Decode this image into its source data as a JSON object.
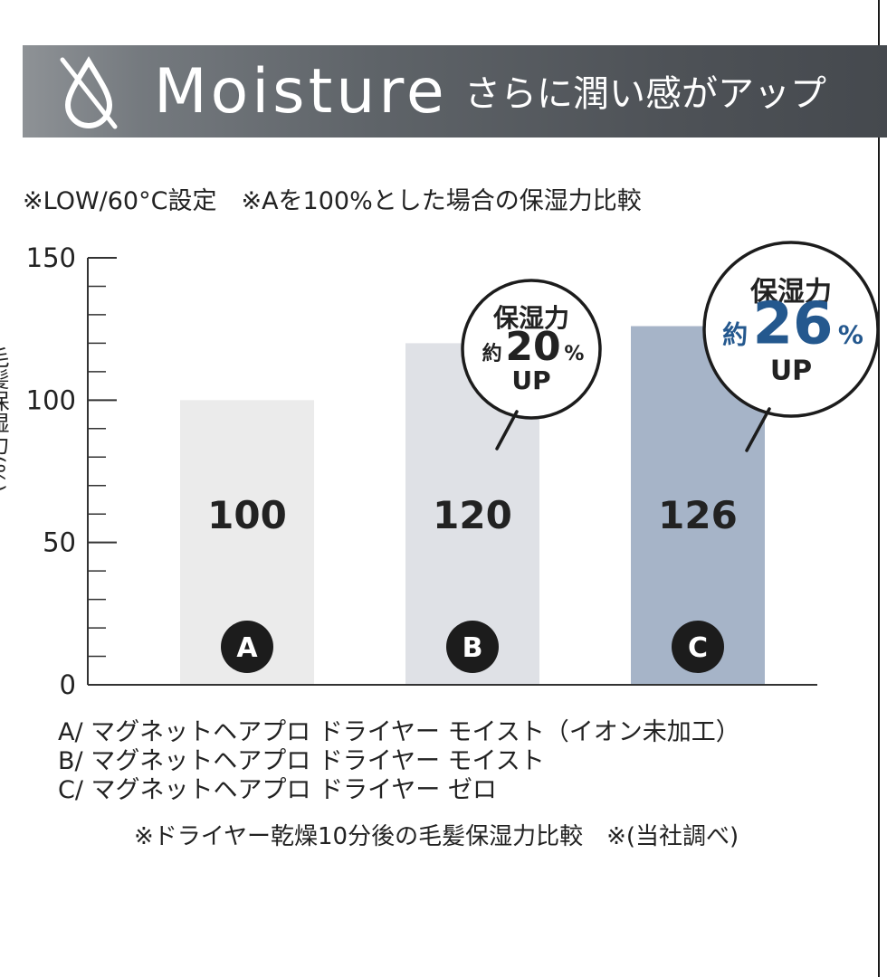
{
  "header": {
    "title": "Moisture",
    "subtitle": "さらに潤い感がアップ",
    "icon": "droplet-slash-icon",
    "bg_color": "#5f6469"
  },
  "note": "※LOW/60°C設定　※Aを100%とした場合の保湿力比較",
  "chart_data": {
    "type": "bar",
    "categories": [
      "A",
      "B",
      "C"
    ],
    "values": [
      100,
      120,
      126
    ],
    "value_labels": [
      "100",
      "120",
      "126"
    ],
    "ylabel": "毛髪保湿力(%)",
    "ylim": [
      0,
      150
    ],
    "yticks": [
      0,
      50,
      100,
      150
    ],
    "minor_tick_step": 10,
    "colors": [
      "#ebebeb",
      "#dfe1e6",
      "#a6b4c8"
    ],
    "grid": false,
    "callouts": [
      {
        "category": "B",
        "line1": "保湿力",
        "prefix": "約",
        "number": "20",
        "unit": "%",
        "line3": "UP",
        "accent": "#222222"
      },
      {
        "category": "C",
        "line1": "保湿力",
        "prefix": "約",
        "number": "26",
        "unit": "%",
        "line3": "UP",
        "accent": "#24588e"
      }
    ]
  },
  "legend": [
    "A/ マグネットヘアプロ ドライヤー モイスト（イオン未加工）",
    "B/ マグネットヘアプロ ドライヤー モイスト",
    "C/ マグネットヘアプロ ドライヤー ゼロ"
  ],
  "footnote": "※ドライヤー乾燥10分後の毛髪保湿力比較　※(当社調べ)"
}
